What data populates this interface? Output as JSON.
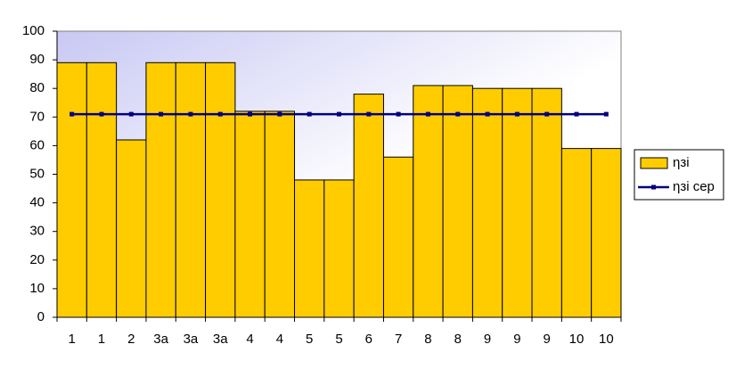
{
  "chart_data": {
    "type": "bar",
    "categories": [
      "1",
      "1",
      "2",
      "3а",
      "3а",
      "3а",
      "4",
      "4",
      "5",
      "5",
      "6",
      "7",
      "8",
      "8",
      "9",
      "9",
      "9",
      "10",
      "10"
    ],
    "series": [
      {
        "name": "ηзі",
        "color": "#ffcc00",
        "values": [
          89,
          89,
          62,
          89,
          89,
          89,
          72,
          72,
          48,
          48,
          78,
          56,
          81,
          81,
          80,
          80,
          80,
          59,
          59
        ]
      },
      {
        "name": "ηзі сер",
        "color": "#000080",
        "type": "line",
        "values": [
          71,
          71,
          71,
          71,
          71,
          71,
          71,
          71,
          71,
          71,
          71,
          71,
          71,
          71,
          71,
          71,
          71,
          71,
          71
        ]
      }
    ],
    "ylim": [
      0,
      100
    ],
    "yticks": [
      0,
      10,
      20,
      30,
      40,
      50,
      60,
      70,
      80,
      90,
      100
    ],
    "legend": "right"
  }
}
